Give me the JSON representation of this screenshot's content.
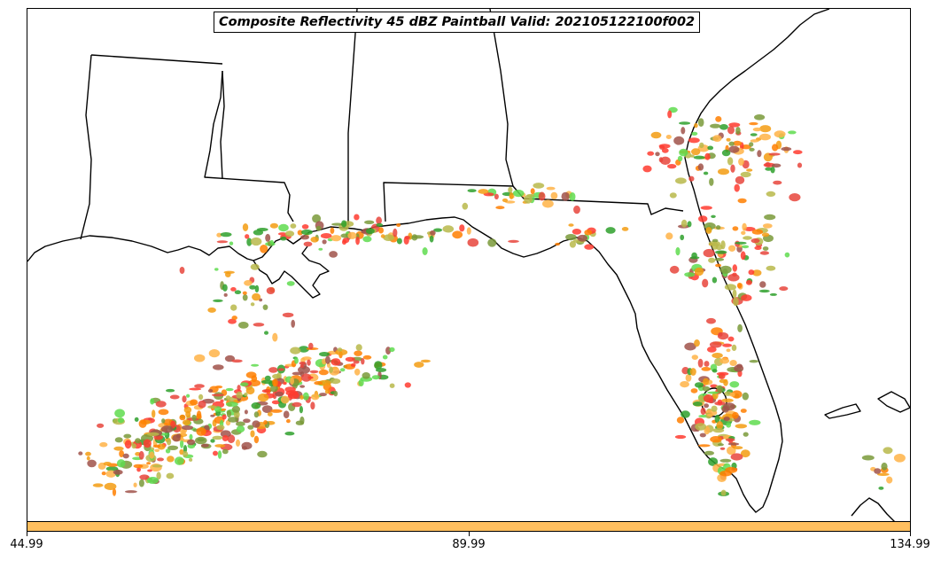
{
  "title": "Composite Reflectivity 45 dBZ Paintball Valid: 202105122100f002",
  "colorbar": {
    "color": "#ffbf5f",
    "ticks": [
      {
        "label": "44.99",
        "value": 44.99
      },
      {
        "label": "89.99",
        "value": 89.99
      },
      {
        "label": "134.99",
        "value": 134.99
      }
    ],
    "range": [
      44.99,
      134.99
    ]
  },
  "member_colors": [
    "#ff3b2f",
    "#ff7f00",
    "#ffb347",
    "#5fdc4f",
    "#2ea02c",
    "#7a9a3a",
    "#b8b84a",
    "#a0524a",
    "#e8453c",
    "#f39c12"
  ]
}
